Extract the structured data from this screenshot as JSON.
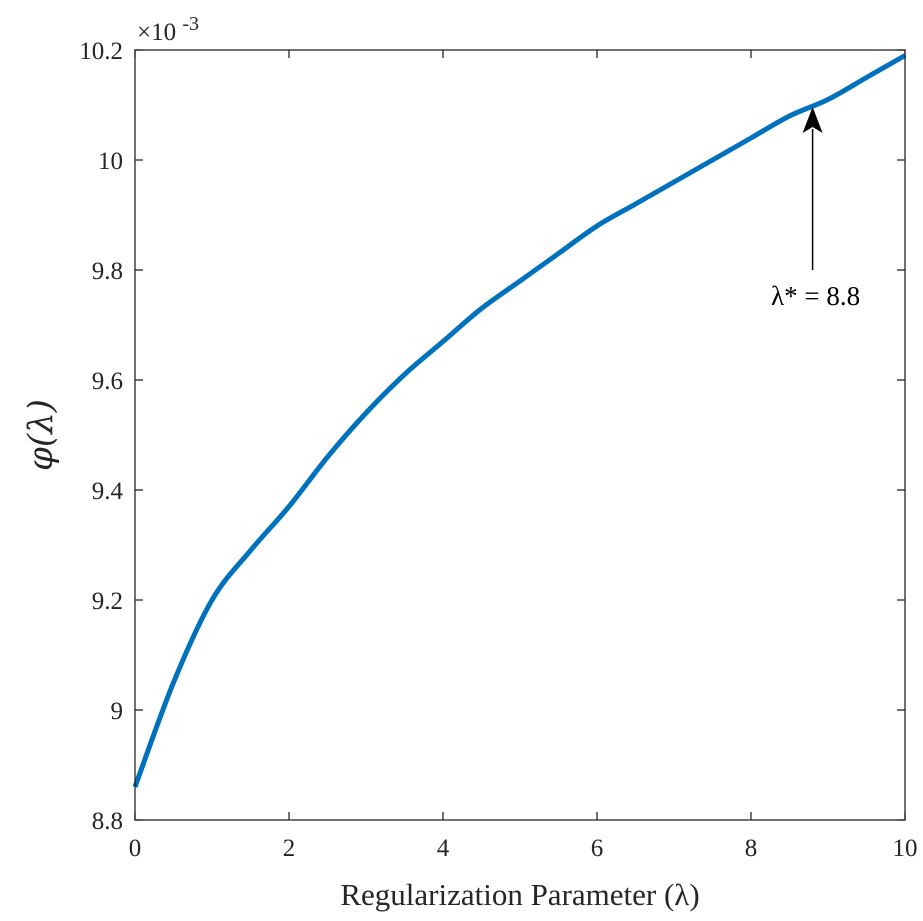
{
  "chart_data": {
    "type": "line",
    "xlabel": "Regularization Parameter (λ)",
    "ylabel": "φ(λ)",
    "y_exponent_label": "×10",
    "y_exponent_power": "-3",
    "xlim": [
      0,
      10
    ],
    "ylim": [
      8.8,
      10.2
    ],
    "x_ticks": [
      0,
      2,
      4,
      6,
      8,
      10
    ],
    "x_tick_labels": [
      "0",
      "2",
      "4",
      "6",
      "8",
      "10"
    ],
    "y_ticks": [
      8.8,
      9.0,
      9.2,
      9.4,
      9.6,
      9.8,
      10.0,
      10.2
    ],
    "y_tick_labels": [
      "8.8",
      "9",
      "9.2",
      "9.4",
      "9.6",
      "9.8",
      "10",
      "10.2"
    ],
    "grid": false,
    "series": [
      {
        "color": "#0072BD",
        "x": [
          0,
          0.5,
          1,
          1.5,
          2,
          2.5,
          3,
          3.5,
          4,
          4.5,
          5,
          5.5,
          6,
          6.5,
          7,
          7.5,
          8,
          8.5,
          9,
          9.5,
          10
        ],
        "y": [
          8.86,
          9.05,
          9.2,
          9.29,
          9.37,
          9.46,
          9.54,
          9.61,
          9.67,
          9.73,
          9.78,
          9.83,
          9.88,
          9.92,
          9.96,
          10.0,
          10.04,
          10.08,
          10.11,
          10.15,
          10.19
        ]
      }
    ],
    "annotations": [
      {
        "text": "λ* = 8.8",
        "x": 8.8,
        "y": 10.1
      }
    ]
  }
}
